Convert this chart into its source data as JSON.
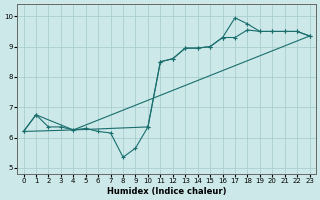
{
  "xlabel": "Humidex (Indice chaleur)",
  "bg_color": "#cce8e8",
  "grid_color": "#aacece",
  "line_color": "#1a6e6e",
  "xlim": [
    -0.5,
    23.5
  ],
  "ylim": [
    4.8,
    10.4
  ],
  "xticks": [
    0,
    1,
    2,
    3,
    4,
    5,
    6,
    7,
    8,
    9,
    10,
    11,
    12,
    13,
    14,
    15,
    16,
    17,
    18,
    19,
    20,
    21,
    22,
    23
  ],
  "yticks": [
    5,
    6,
    7,
    8,
    9,
    10
  ],
  "line1_x": [
    0,
    1,
    2,
    3,
    4,
    5,
    6,
    7,
    8,
    9,
    10,
    11,
    12,
    13,
    14,
    15,
    16,
    17,
    18,
    19,
    20,
    21,
    22,
    23
  ],
  "line1_y": [
    6.2,
    6.75,
    6.35,
    6.35,
    6.25,
    6.3,
    6.2,
    6.15,
    5.35,
    5.65,
    6.35,
    8.5,
    8.6,
    8.95,
    8.95,
    9.0,
    9.3,
    9.3,
    9.55,
    9.5,
    9.5,
    9.5,
    9.5,
    9.35
  ],
  "line2_x": [
    0,
    1,
    4,
    10,
    11,
    12,
    13,
    14,
    15,
    16,
    17,
    18,
    19,
    20,
    21,
    22,
    23
  ],
  "line2_y": [
    6.2,
    6.75,
    6.25,
    6.35,
    8.5,
    8.6,
    8.95,
    8.95,
    9.0,
    9.3,
    9.95,
    9.75,
    9.5,
    9.5,
    9.5,
    9.5,
    9.35
  ],
  "line3_x": [
    0,
    4,
    23
  ],
  "line3_y": [
    6.2,
    6.25,
    9.35
  ]
}
